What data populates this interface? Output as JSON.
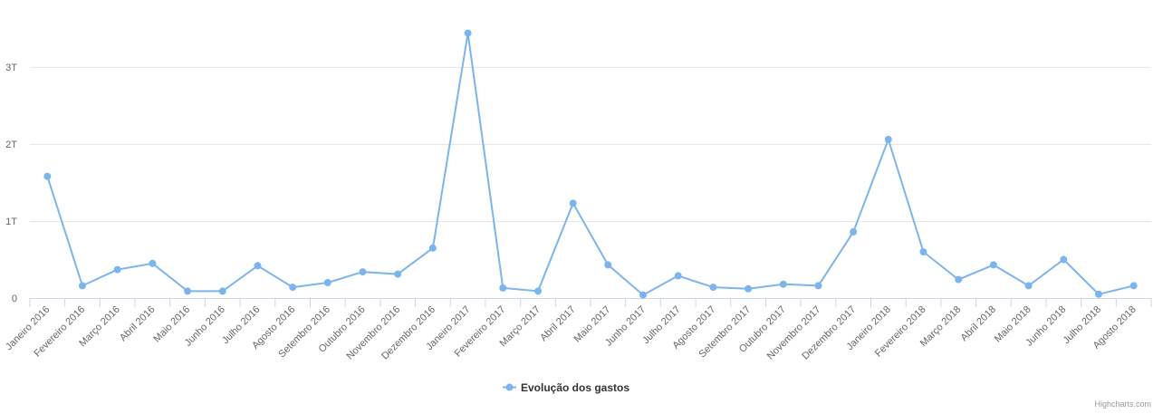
{
  "chart_data": {
    "type": "line",
    "categories": [
      "Janeiro 2016",
      "Fevereiro 2016",
      "Março 2016",
      "Abril 2016",
      "Maio 2016",
      "Junho 2016",
      "Julho 2016",
      "Agosto 2016",
      "Setembro 2016",
      "Outubro 2016",
      "Novembro 2016",
      "Dezembro 2016",
      "Janeiro 2017",
      "Fevereiro 2017",
      "Março 2017",
      "Abril 2017",
      "Maio 2017",
      "Junho 2017",
      "Julho 2017",
      "Agosto 2017",
      "Setembro 2017",
      "Outubro 2017",
      "Novembro 2017",
      "Dezembro 2017",
      "Janeiro 2018",
      "Fevereiro 2018",
      "Março 2018",
      "Abril 2018",
      "Maio 2018",
      "Junho 2018",
      "Julho 2018",
      "Agosto 2018"
    ],
    "series": [
      {
        "name": "Evolução dos gastos",
        "color": "#7cb5ec",
        "values": [
          1.58,
          0.16,
          0.37,
          0.45,
          0.09,
          0.09,
          0.42,
          0.14,
          0.2,
          0.34,
          0.31,
          0.65,
          3.44,
          0.13,
          0.09,
          1.23,
          0.43,
          0.04,
          0.29,
          0.14,
          0.12,
          0.18,
          0.16,
          0.86,
          2.06,
          0.6,
          0.24,
          0.43,
          0.16,
          0.5,
          0.05,
          0.16
        ]
      }
    ],
    "yticks": [
      "0",
      "1T",
      "2T",
      "3T"
    ],
    "ylim": [
      0,
      3.55
    ],
    "grid": true,
    "legend_position": "bottom-center"
  },
  "credits": "Highcharts.com"
}
